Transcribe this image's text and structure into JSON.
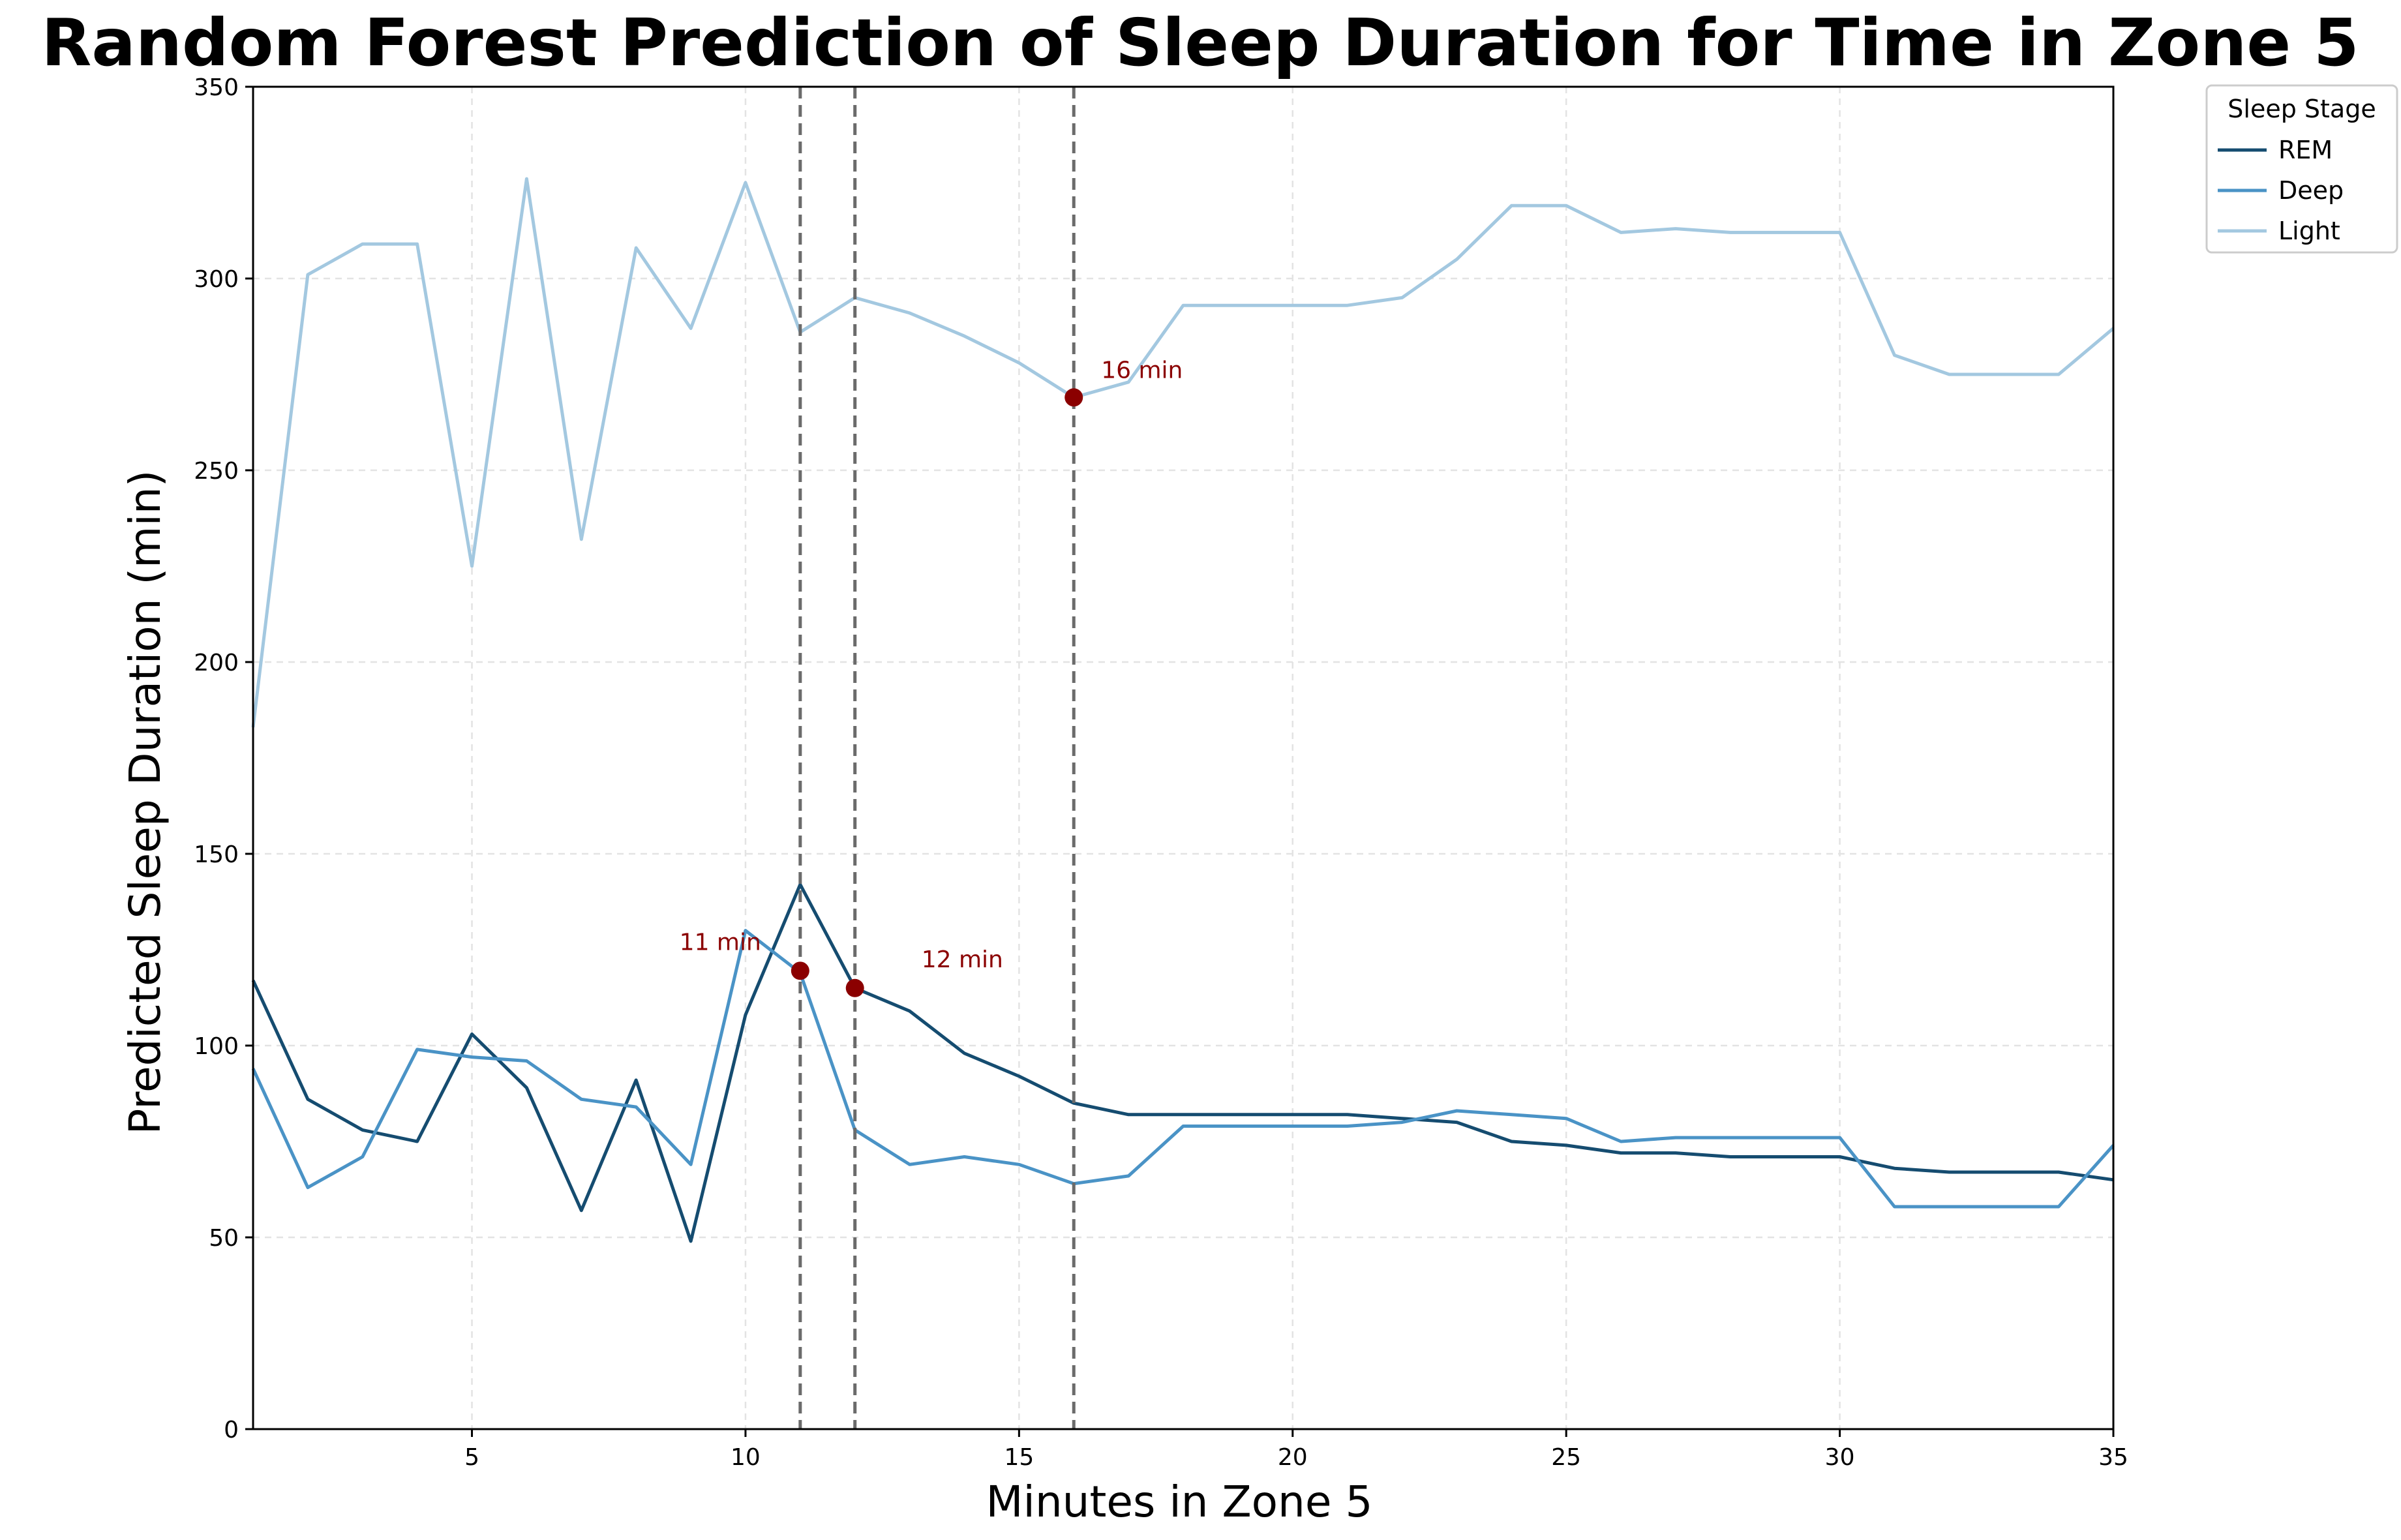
{
  "chart_data": {
    "type": "line",
    "title": "Random Forest Prediction of Sleep Duration for Time in Zone 5",
    "xlabel": "Minutes in Zone 5",
    "ylabel": "Predicted Sleep Duration (min)",
    "xlim": [
      1,
      35
    ],
    "ylim": [
      0,
      350
    ],
    "x_ticks": [
      5,
      10,
      15,
      20,
      25,
      30,
      35
    ],
    "y_ticks": [
      0,
      50,
      100,
      150,
      200,
      250,
      300,
      350
    ],
    "grid": true,
    "legend": {
      "title": "Sleep Stage",
      "placement": "outside-top-right"
    },
    "x": [
      1,
      2,
      3,
      4,
      5,
      6,
      7,
      8,
      9,
      10,
      11,
      12,
      13,
      14,
      15,
      16,
      17,
      18,
      19,
      20,
      21,
      22,
      23,
      24,
      25,
      26,
      27,
      28,
      29,
      30,
      31,
      32,
      33,
      34,
      35
    ],
    "series": [
      {
        "name": "REM",
        "color": "#154c70",
        "values": [
          117,
          86,
          78,
          75,
          103,
          89,
          57,
          91,
          49,
          108,
          142,
          115,
          109,
          98,
          92,
          85,
          82,
          82,
          82,
          82,
          82,
          81,
          80,
          75,
          74,
          72,
          72,
          71,
          71,
          71,
          68,
          67,
          67,
          67,
          65
        ]
      },
      {
        "name": "Deep",
        "color": "#4a93c6",
        "values": [
          94,
          63,
          71,
          99,
          97,
          96,
          86,
          84,
          69,
          130,
          119,
          78,
          69,
          71,
          69,
          64,
          66,
          79,
          79,
          79,
          79,
          80,
          83,
          82,
          81,
          75,
          76,
          76,
          76,
          76,
          58,
          58,
          58,
          58,
          74
        ]
      },
      {
        "name": "Light",
        "color": "#a3c8e0",
        "values": [
          183,
          301,
          309,
          309,
          225,
          326,
          232,
          308,
          287,
          325,
          286,
          295,
          291,
          285,
          278,
          269,
          273,
          293,
          293,
          293,
          293,
          295,
          305,
          319,
          319,
          312,
          313,
          312,
          312,
          312,
          280,
          275,
          275,
          275,
          287
        ]
      }
    ],
    "reference_lines": [
      {
        "x": 11,
        "color": "#6b6b6b"
      },
      {
        "x": 12,
        "color": "#6b6b6b"
      },
      {
        "x": 16,
        "color": "#6b6b6b"
      }
    ],
    "annotations": [
      {
        "x": 11,
        "y": 119.5,
        "label": "11 min",
        "color": "#8b0000"
      },
      {
        "x": 12,
        "y": 115,
        "label": "12 min",
        "color": "#8b0000"
      },
      {
        "x": 16,
        "y": 269,
        "label": "16 min",
        "color": "#8b0000"
      }
    ]
  }
}
